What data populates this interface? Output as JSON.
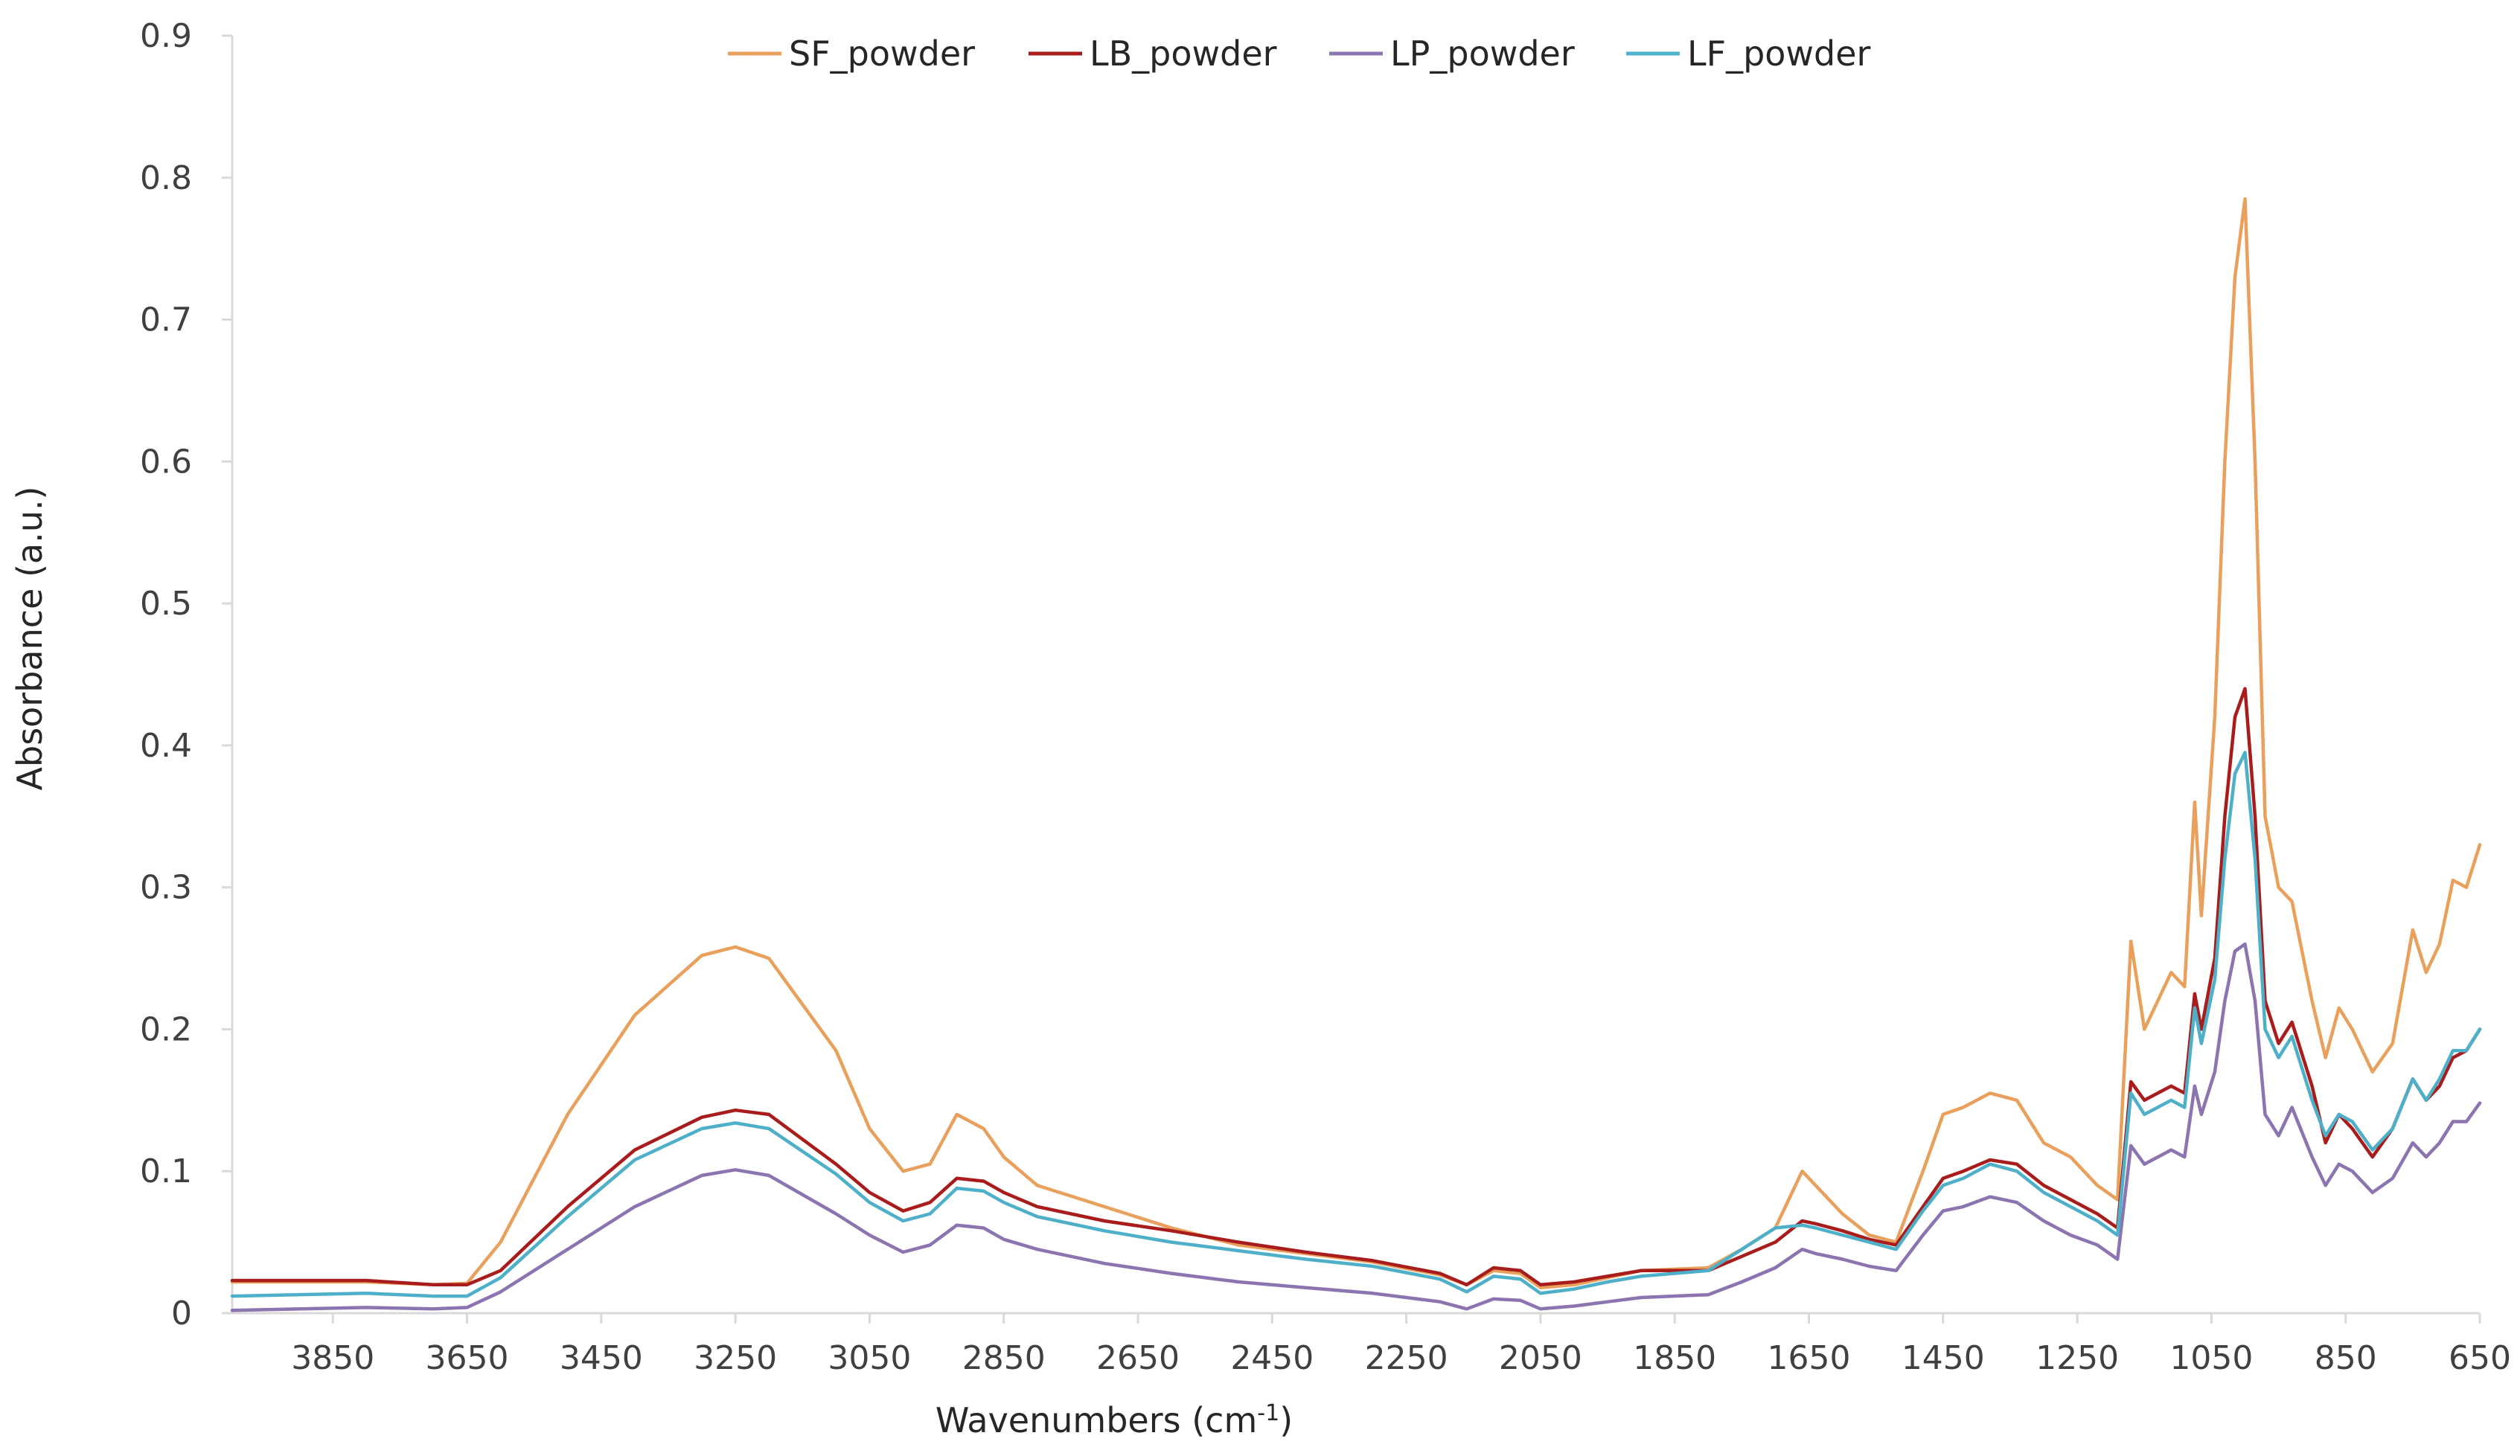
{
  "chart_data": {
    "type": "line",
    "title": "",
    "xlabel": "Wavenumbers  (cm",
    "xlabel_sup": "-1",
    "xlabel_close": ")",
    "ylabel": "Absorbance (a.u.)",
    "xlim": [
      4000,
      650
    ],
    "x_reversed": true,
    "ylim": [
      0,
      0.9
    ],
    "grid": false,
    "legend_position": "top-center",
    "x_ticks": [
      3850,
      3650,
      3450,
      3250,
      3050,
      2850,
      2650,
      2450,
      2250,
      2050,
      1850,
      1650,
      1450,
      1250,
      1050,
      850,
      650
    ],
    "y_ticks": [
      {
        "v": 0,
        "label": "0"
      },
      {
        "v": 0.1,
        "label": "0.1"
      },
      {
        "v": 0.2,
        "label": "0.2"
      },
      {
        "v": 0.3,
        "label": "0.3"
      },
      {
        "v": 0.4,
        "label": "0.4"
      },
      {
        "v": 0.5,
        "label": "0.5"
      },
      {
        "v": 0.6,
        "label": "0.6"
      },
      {
        "v": 0.7,
        "label": "0.7"
      },
      {
        "v": 0.8,
        "label": "0.8"
      },
      {
        "v": 0.9,
        "label": "0.9"
      }
    ],
    "series": [
      {
        "name": "SF_powder",
        "color": "#E8A05C",
        "points": [
          [
            4000,
            0.022
          ],
          [
            3800,
            0.022
          ],
          [
            3700,
            0.02
          ],
          [
            3650,
            0.021
          ],
          [
            3600,
            0.05
          ],
          [
            3500,
            0.14
          ],
          [
            3400,
            0.21
          ],
          [
            3300,
            0.252
          ],
          [
            3250,
            0.258
          ],
          [
            3200,
            0.25
          ],
          [
            3100,
            0.185
          ],
          [
            3050,
            0.13
          ],
          [
            3000,
            0.1
          ],
          [
            2960,
            0.105
          ],
          [
            2920,
            0.14
          ],
          [
            2880,
            0.13
          ],
          [
            2850,
            0.11
          ],
          [
            2800,
            0.09
          ],
          [
            2700,
            0.075
          ],
          [
            2600,
            0.06
          ],
          [
            2500,
            0.048
          ],
          [
            2400,
            0.042
          ],
          [
            2300,
            0.036
          ],
          [
            2200,
            0.027
          ],
          [
            2160,
            0.02
          ],
          [
            2120,
            0.03
          ],
          [
            2080,
            0.028
          ],
          [
            2050,
            0.018
          ],
          [
            2000,
            0.02
          ],
          [
            1950,
            0.025
          ],
          [
            1900,
            0.03
          ],
          [
            1800,
            0.032
          ],
          [
            1750,
            0.045
          ],
          [
            1700,
            0.06
          ],
          [
            1660,
            0.1
          ],
          [
            1640,
            0.09
          ],
          [
            1600,
            0.07
          ],
          [
            1560,
            0.055
          ],
          [
            1520,
            0.05
          ],
          [
            1480,
            0.1
          ],
          [
            1450,
            0.14
          ],
          [
            1420,
            0.145
          ],
          [
            1380,
            0.155
          ],
          [
            1340,
            0.15
          ],
          [
            1300,
            0.12
          ],
          [
            1260,
            0.11
          ],
          [
            1220,
            0.09
          ],
          [
            1190,
            0.08
          ],
          [
            1170,
            0.262
          ],
          [
            1150,
            0.2
          ],
          [
            1110,
            0.24
          ],
          [
            1090,
            0.23
          ],
          [
            1075,
            0.36
          ],
          [
            1065,
            0.28
          ],
          [
            1045,
            0.42
          ],
          [
            1030,
            0.6
          ],
          [
            1015,
            0.73
          ],
          [
            1000,
            0.785
          ],
          [
            985,
            0.6
          ],
          [
            970,
            0.35
          ],
          [
            950,
            0.3
          ],
          [
            930,
            0.29
          ],
          [
            900,
            0.22
          ],
          [
            880,
            0.18
          ],
          [
            860,
            0.215
          ],
          [
            840,
            0.2
          ],
          [
            810,
            0.17
          ],
          [
            780,
            0.19
          ],
          [
            750,
            0.27
          ],
          [
            730,
            0.24
          ],
          [
            710,
            0.26
          ],
          [
            690,
            0.305
          ],
          [
            670,
            0.3
          ],
          [
            650,
            0.33
          ]
        ]
      },
      {
        "name": "LB_powder",
        "color": "#A81C1C",
        "points": [
          [
            4000,
            0.023
          ],
          [
            3800,
            0.023
          ],
          [
            3700,
            0.02
          ],
          [
            3650,
            0.02
          ],
          [
            3600,
            0.03
          ],
          [
            3500,
            0.075
          ],
          [
            3400,
            0.115
          ],
          [
            3300,
            0.138
          ],
          [
            3250,
            0.143
          ],
          [
            3200,
            0.14
          ],
          [
            3100,
            0.105
          ],
          [
            3050,
            0.085
          ],
          [
            3000,
            0.072
          ],
          [
            2960,
            0.078
          ],
          [
            2920,
            0.095
          ],
          [
            2880,
            0.093
          ],
          [
            2850,
            0.085
          ],
          [
            2800,
            0.075
          ],
          [
            2700,
            0.065
          ],
          [
            2600,
            0.058
          ],
          [
            2500,
            0.05
          ],
          [
            2400,
            0.043
          ],
          [
            2300,
            0.037
          ],
          [
            2200,
            0.028
          ],
          [
            2160,
            0.02
          ],
          [
            2120,
            0.032
          ],
          [
            2080,
            0.03
          ],
          [
            2050,
            0.02
          ],
          [
            2000,
            0.022
          ],
          [
            1950,
            0.026
          ],
          [
            1900,
            0.03
          ],
          [
            1800,
            0.03
          ],
          [
            1750,
            0.04
          ],
          [
            1700,
            0.05
          ],
          [
            1660,
            0.065
          ],
          [
            1640,
            0.063
          ],
          [
            1600,
            0.058
          ],
          [
            1560,
            0.052
          ],
          [
            1520,
            0.048
          ],
          [
            1480,
            0.075
          ],
          [
            1450,
            0.095
          ],
          [
            1420,
            0.1
          ],
          [
            1380,
            0.108
          ],
          [
            1340,
            0.105
          ],
          [
            1300,
            0.09
          ],
          [
            1260,
            0.08
          ],
          [
            1220,
            0.07
          ],
          [
            1190,
            0.06
          ],
          [
            1170,
            0.163
          ],
          [
            1150,
            0.15
          ],
          [
            1110,
            0.16
          ],
          [
            1090,
            0.155
          ],
          [
            1075,
            0.225
          ],
          [
            1065,
            0.2
          ],
          [
            1045,
            0.25
          ],
          [
            1030,
            0.35
          ],
          [
            1015,
            0.42
          ],
          [
            1000,
            0.44
          ],
          [
            985,
            0.35
          ],
          [
            970,
            0.22
          ],
          [
            950,
            0.19
          ],
          [
            930,
            0.205
          ],
          [
            900,
            0.16
          ],
          [
            880,
            0.12
          ],
          [
            860,
            0.14
          ],
          [
            840,
            0.13
          ],
          [
            810,
            0.11
          ],
          [
            780,
            0.13
          ],
          [
            750,
            0.165
          ],
          [
            730,
            0.15
          ],
          [
            710,
            0.16
          ],
          [
            690,
            0.18
          ],
          [
            670,
            0.185
          ],
          [
            650,
            0.2
          ]
        ]
      },
      {
        "name": "LP_powder",
        "color": "#8B74B0",
        "points": [
          [
            4000,
            0.002
          ],
          [
            3800,
            0.004
          ],
          [
            3700,
            0.003
          ],
          [
            3650,
            0.004
          ],
          [
            3600,
            0.015
          ],
          [
            3500,
            0.045
          ],
          [
            3400,
            0.075
          ],
          [
            3300,
            0.097
          ],
          [
            3250,
            0.101
          ],
          [
            3200,
            0.097
          ],
          [
            3100,
            0.07
          ],
          [
            3050,
            0.055
          ],
          [
            3000,
            0.043
          ],
          [
            2960,
            0.048
          ],
          [
            2920,
            0.062
          ],
          [
            2880,
            0.06
          ],
          [
            2850,
            0.052
          ],
          [
            2800,
            0.045
          ],
          [
            2700,
            0.035
          ],
          [
            2600,
            0.028
          ],
          [
            2500,
            0.022
          ],
          [
            2400,
            0.018
          ],
          [
            2300,
            0.014
          ],
          [
            2200,
            0.008
          ],
          [
            2160,
            0.003
          ],
          [
            2120,
            0.01
          ],
          [
            2080,
            0.009
          ],
          [
            2050,
            0.003
          ],
          [
            2000,
            0.005
          ],
          [
            1950,
            0.008
          ],
          [
            1900,
            0.011
          ],
          [
            1800,
            0.013
          ],
          [
            1750,
            0.022
          ],
          [
            1700,
            0.032
          ],
          [
            1660,
            0.045
          ],
          [
            1640,
            0.042
          ],
          [
            1600,
            0.038
          ],
          [
            1560,
            0.033
          ],
          [
            1520,
            0.03
          ],
          [
            1480,
            0.055
          ],
          [
            1450,
            0.072
          ],
          [
            1420,
            0.075
          ],
          [
            1380,
            0.082
          ],
          [
            1340,
            0.078
          ],
          [
            1300,
            0.065
          ],
          [
            1260,
            0.055
          ],
          [
            1220,
            0.048
          ],
          [
            1190,
            0.038
          ],
          [
            1170,
            0.118
          ],
          [
            1150,
            0.105
          ],
          [
            1110,
            0.115
          ],
          [
            1090,
            0.11
          ],
          [
            1075,
            0.16
          ],
          [
            1065,
            0.14
          ],
          [
            1045,
            0.17
          ],
          [
            1030,
            0.22
          ],
          [
            1015,
            0.255
          ],
          [
            1000,
            0.26
          ],
          [
            985,
            0.22
          ],
          [
            970,
            0.14
          ],
          [
            950,
            0.125
          ],
          [
            930,
            0.145
          ],
          [
            900,
            0.11
          ],
          [
            880,
            0.09
          ],
          [
            860,
            0.105
          ],
          [
            840,
            0.1
          ],
          [
            810,
            0.085
          ],
          [
            780,
            0.095
          ],
          [
            750,
            0.12
          ],
          [
            730,
            0.11
          ],
          [
            710,
            0.12
          ],
          [
            690,
            0.135
          ],
          [
            670,
            0.135
          ],
          [
            650,
            0.148
          ]
        ]
      },
      {
        "name": "LF_powder",
        "color": "#4EB0C8",
        "points": [
          [
            4000,
            0.012
          ],
          [
            3800,
            0.014
          ],
          [
            3700,
            0.012
          ],
          [
            3650,
            0.012
          ],
          [
            3600,
            0.025
          ],
          [
            3500,
            0.068
          ],
          [
            3400,
            0.108
          ],
          [
            3300,
            0.13
          ],
          [
            3250,
            0.134
          ],
          [
            3200,
            0.13
          ],
          [
            3100,
            0.098
          ],
          [
            3050,
            0.078
          ],
          [
            3000,
            0.065
          ],
          [
            2960,
            0.07
          ],
          [
            2920,
            0.088
          ],
          [
            2880,
            0.086
          ],
          [
            2850,
            0.078
          ],
          [
            2800,
            0.068
          ],
          [
            2700,
            0.058
          ],
          [
            2600,
            0.05
          ],
          [
            2500,
            0.044
          ],
          [
            2400,
            0.038
          ],
          [
            2300,
            0.033
          ],
          [
            2200,
            0.024
          ],
          [
            2160,
            0.015
          ],
          [
            2120,
            0.026
          ],
          [
            2080,
            0.024
          ],
          [
            2050,
            0.014
          ],
          [
            2000,
            0.017
          ],
          [
            1950,
            0.022
          ],
          [
            1900,
            0.026
          ],
          [
            1800,
            0.03
          ],
          [
            1750,
            0.045
          ],
          [
            1700,
            0.06
          ],
          [
            1660,
            0.062
          ],
          [
            1640,
            0.06
          ],
          [
            1600,
            0.055
          ],
          [
            1560,
            0.05
          ],
          [
            1520,
            0.045
          ],
          [
            1480,
            0.072
          ],
          [
            1450,
            0.09
          ],
          [
            1420,
            0.095
          ],
          [
            1380,
            0.105
          ],
          [
            1340,
            0.1
          ],
          [
            1300,
            0.085
          ],
          [
            1260,
            0.075
          ],
          [
            1220,
            0.065
          ],
          [
            1190,
            0.055
          ],
          [
            1170,
            0.155
          ],
          [
            1150,
            0.14
          ],
          [
            1110,
            0.15
          ],
          [
            1090,
            0.145
          ],
          [
            1075,
            0.215
          ],
          [
            1065,
            0.19
          ],
          [
            1045,
            0.235
          ],
          [
            1030,
            0.32
          ],
          [
            1015,
            0.38
          ],
          [
            1000,
            0.395
          ],
          [
            985,
            0.32
          ],
          [
            970,
            0.2
          ],
          [
            950,
            0.18
          ],
          [
            930,
            0.195
          ],
          [
            900,
            0.15
          ],
          [
            880,
            0.125
          ],
          [
            860,
            0.14
          ],
          [
            840,
            0.135
          ],
          [
            810,
            0.115
          ],
          [
            780,
            0.13
          ],
          [
            750,
            0.165
          ],
          [
            730,
            0.15
          ],
          [
            710,
            0.165
          ],
          [
            690,
            0.185
          ],
          [
            670,
            0.185
          ],
          [
            650,
            0.2
          ]
        ]
      }
    ]
  }
}
